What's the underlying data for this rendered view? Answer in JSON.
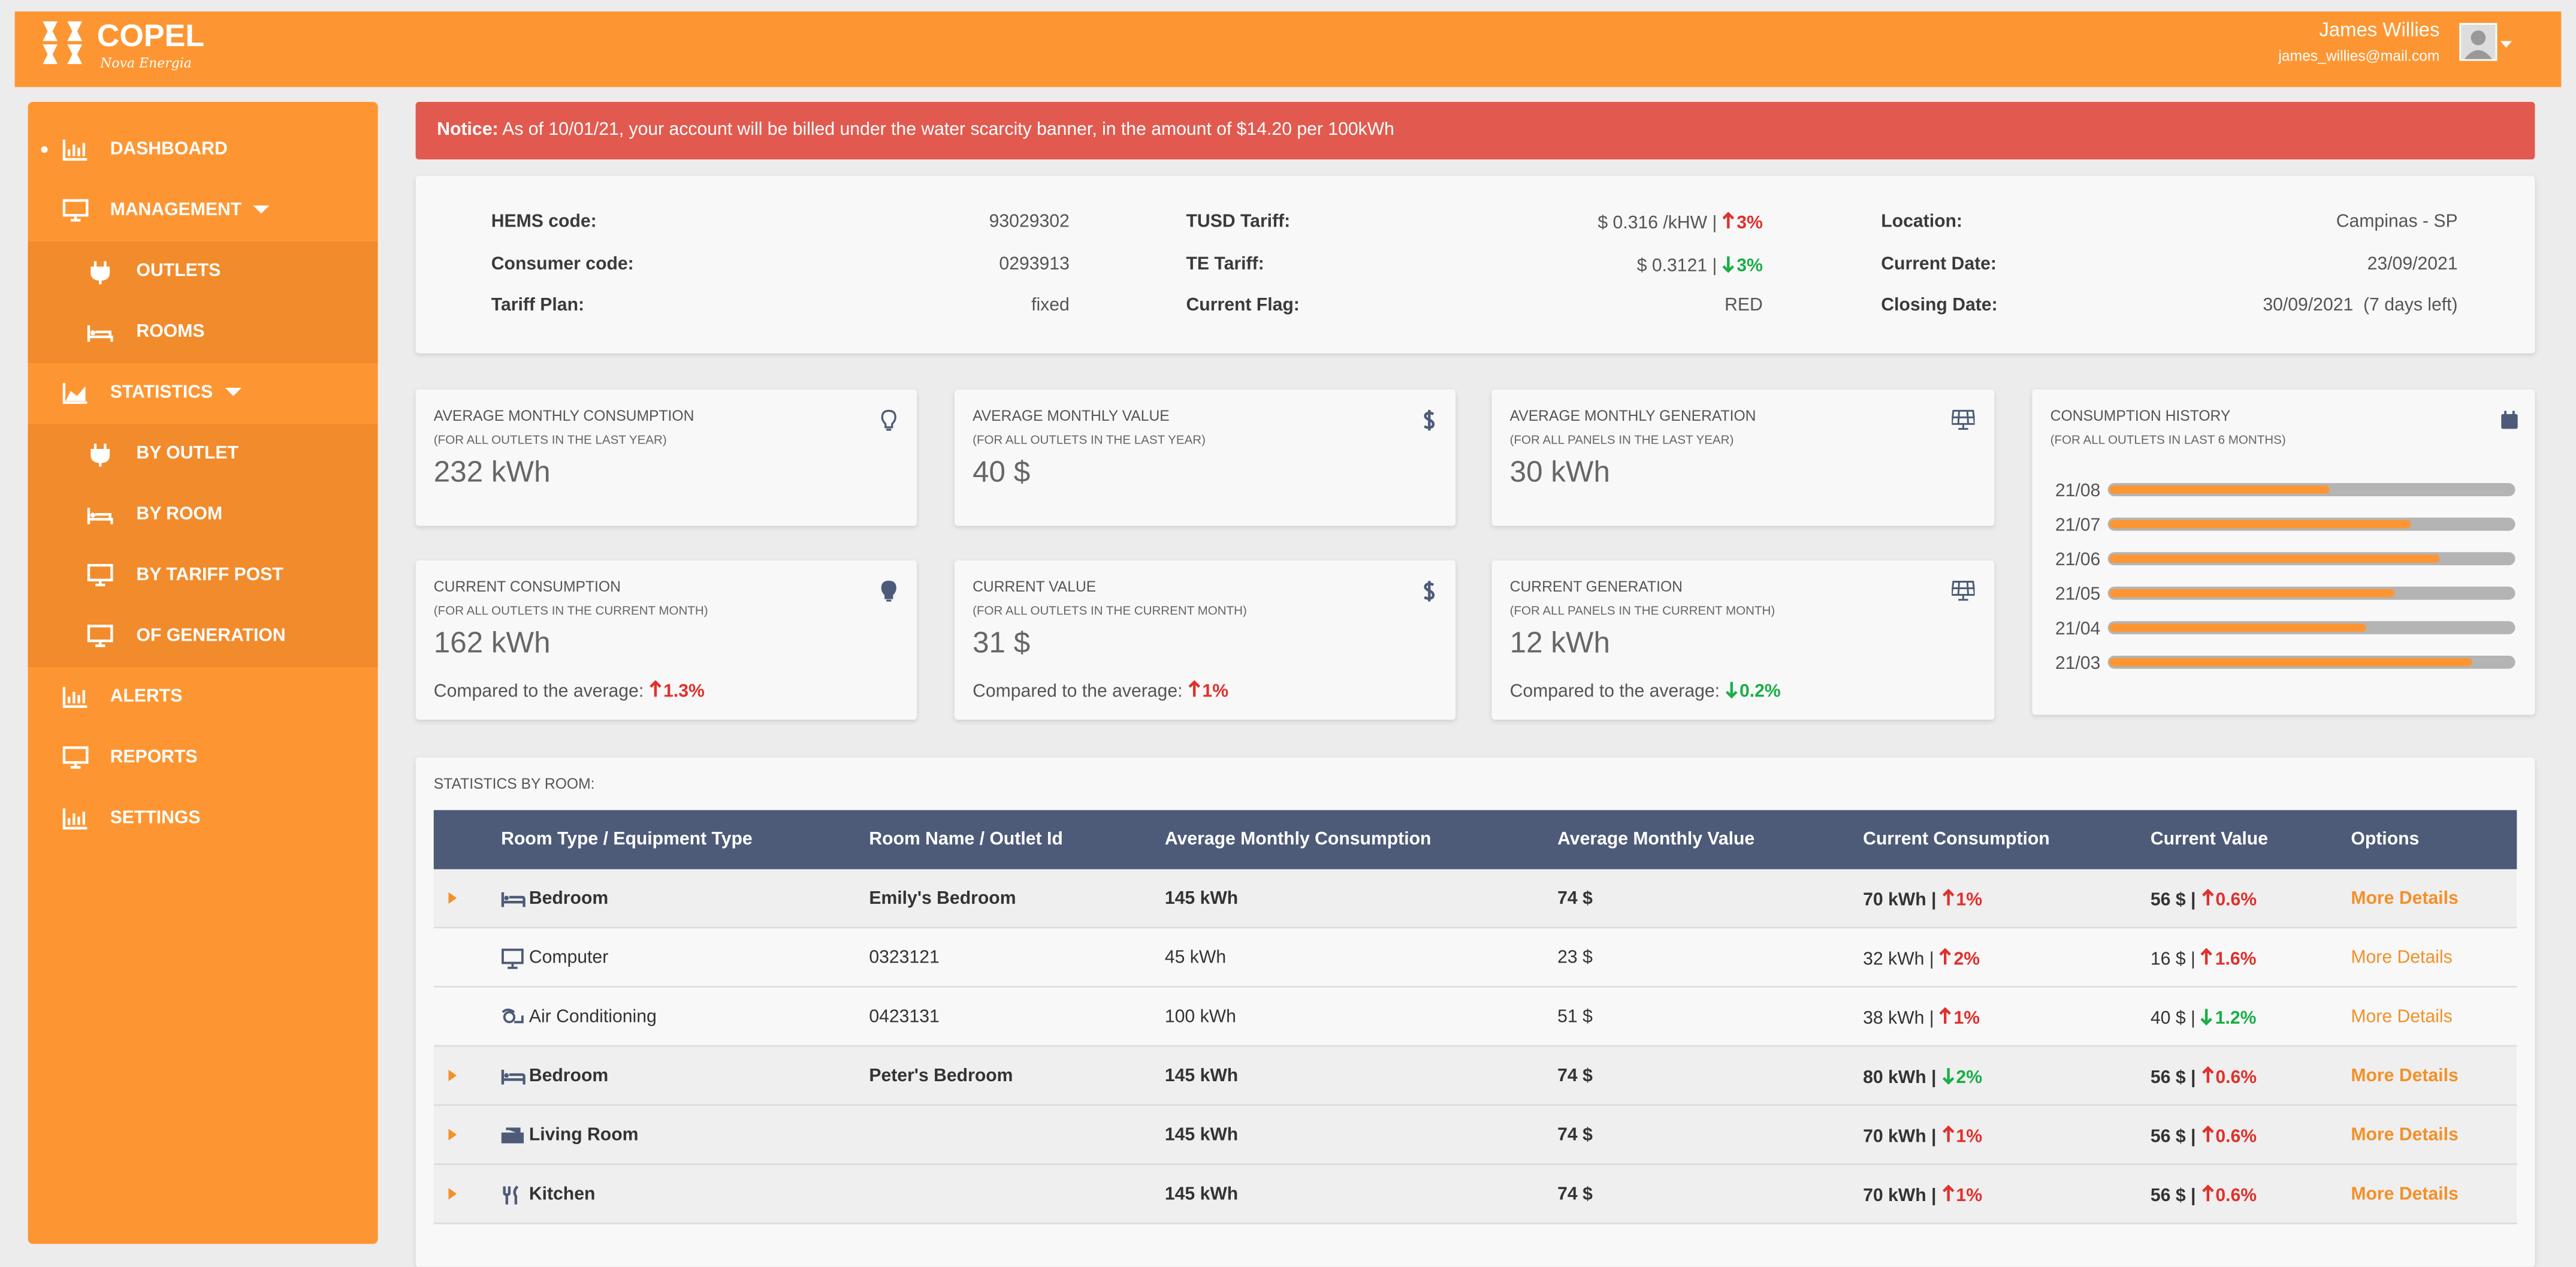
{
  "header": {
    "brand": "COPEL",
    "tagline": "Nova Energia",
    "user_name": "James Willies",
    "user_email": "james_willies@mail.com"
  },
  "sidebar": {
    "items": [
      "DASHBOARD",
      "MANAGEMENT",
      "OUTLETS",
      "ROOMS",
      "STATISTICS",
      "BY OUTLET",
      "BY ROOM",
      "BY TARIFF POST",
      "OF GENERATION",
      "ALERTS",
      "REPORTS",
      "SETTINGS"
    ]
  },
  "notice": {
    "label": "Notice:",
    "text": "As of 10/01/21, your account will be billed under the water scarcity banner, in the amount of $14.20 per 100kWh"
  },
  "account": {
    "fields": [
      {
        "label": "HEMS code:",
        "value": "93029302"
      },
      {
        "label": "Consumer code:",
        "value": "0293913"
      },
      {
        "label": "Tariff Plan:",
        "value": "fixed"
      },
      {
        "label": "TUSD Tariff:",
        "value": "$ 0.316 /kHW |",
        "change": "3%"
      },
      {
        "label": "TE Tariff:",
        "value": "$ 0.3121 |",
        "change": "3%"
      },
      {
        "label": "Current Flag:",
        "value": "RED"
      },
      {
        "label": "Location:",
        "value": "Campinas - SP"
      },
      {
        "label": "Current Date:",
        "value": "23/09/2021"
      },
      {
        "label": "Closing Date:",
        "value": "30/09/2021  (7 days left)"
      }
    ]
  },
  "cards": [
    {
      "title": "AVERAGE MONTHLY CONSUMPTION",
      "subtitle": "(FOR ALL OUTLETS IN THE LAST YEAR)",
      "value": "232 kWh"
    },
    {
      "title": "AVERAGE MONTHLY VALUE",
      "subtitle": "(FOR ALL OUTLETS IN THE LAST YEAR)",
      "value": "40 $"
    },
    {
      "title": "AVERAGE MONTHLY GENERATION",
      "subtitle": "(FOR ALL PANELS IN THE LAST YEAR)",
      "value": "30 kWh"
    },
    {
      "title": "CURRENT CONSUMPTION",
      "subtitle": "(FOR ALL OUTLETS IN THE CURRENT MONTH)",
      "value": "162 kWh",
      "compare_label": "Compared to the average:",
      "change": "1.3%"
    },
    {
      "title": "CURRENT VALUE",
      "subtitle": "(FOR ALL OUTLETS IN THE CURRENT MONTH)",
      "value": "31 $",
      "compare_label": "Compared to the average:",
      "change": "1%"
    },
    {
      "title": "CURRENT GENERATION",
      "subtitle": "(FOR ALL PANELS IN THE CURRENT MONTH)",
      "value": "12 kWh",
      "compare_label": "Compared to the average:",
      "change": "0.2%"
    }
  ],
  "chart_data": {
    "type": "bar",
    "title": "CONSUMPTION HISTORY",
    "subtitle": "(FOR ALL OUTLETS IN LAST 6 MONTHS)",
    "categories": [
      "21/08",
      "21/07",
      "21/06",
      "21/05",
      "21/04",
      "21/03"
    ],
    "values": [
      54,
      74,
      81,
      70,
      63,
      89
    ],
    "xlim": [
      0,
      100
    ],
    "color": "#fd9632"
  },
  "table": {
    "title": "STATISTICS BY ROOM:",
    "columns": [
      "Room Type / Equipment Type",
      "Room Name / Outlet Id",
      "Average Monthly Consumption",
      "Average Monthly Value",
      "Current Consumption",
      "Current Value",
      "Options"
    ],
    "rows": [
      [
        "Bedroom",
        "Emily's Bedroom",
        "145 kWh",
        "74 $",
        "70 kWh |",
        "1%",
        "56 $ |",
        "0.6%",
        "More Details"
      ],
      [
        "Computer",
        "0323121",
        "45 kWh",
        "23 $",
        "32 kWh |",
        "2%",
        "16 $ |",
        "1.6%",
        "More Details"
      ],
      [
        "Air Conditioning",
        "0423131",
        "100 kWh",
        "51 $",
        "38 kWh |",
        "1%",
        "40 $ |",
        "1.2%",
        "More Details"
      ],
      [
        "Bedroom",
        "Peter's Bedroom",
        "145 kWh",
        "74 $",
        "80 kWh |",
        "2%",
        "56 $ |",
        "0.6%",
        "More Details"
      ],
      [
        "Living Room",
        null,
        "145 kWh",
        "74 $",
        "70 kWh |",
        "1%",
        "56 $ |",
        "0.6%",
        "More Details"
      ],
      [
        "Kitchen",
        null,
        "145 kWh",
        "74 $",
        "70 kWh |",
        "1%",
        "56 $ |",
        "0.6%",
        "More Details"
      ]
    ]
  }
}
